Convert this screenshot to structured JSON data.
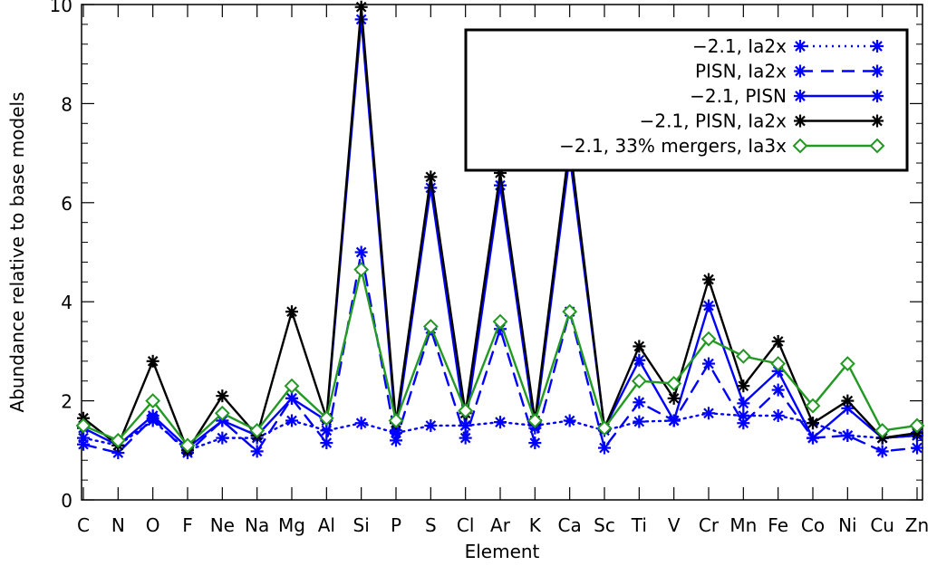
{
  "chart_data": {
    "type": "line",
    "xlabel": "Element",
    "ylabel": "Abundance relative to base models",
    "ylim": [
      0,
      10
    ],
    "yticks": [
      0,
      2,
      4,
      6,
      8,
      10
    ],
    "categories": [
      "C",
      "N",
      "O",
      "F",
      "Ne",
      "Na",
      "Mg",
      "Al",
      "Si",
      "P",
      "S",
      "Cl",
      "Ar",
      "K",
      "Ca",
      "Sc",
      "Ti",
      "V",
      "Cr",
      "Mn",
      "Fe",
      "Co",
      "Ni",
      "Cu",
      "Zn"
    ],
    "legend_position": "top-right",
    "series": [
      {
        "name": "−2.1, Ia2x",
        "color": "#0000ff",
        "line": "dotted",
        "marker": "asterisk",
        "values": [
          1.25,
          1.1,
          1.6,
          1.0,
          1.25,
          1.25,
          1.6,
          1.4,
          1.55,
          1.35,
          1.5,
          1.5,
          1.57,
          1.5,
          1.6,
          1.4,
          1.58,
          1.6,
          1.75,
          1.7,
          1.7,
          1.55,
          1.3,
          1.25,
          1.3
        ]
      },
      {
        "name": "PISN, Ia2x",
        "color": "#0000ff",
        "line": "dashed",
        "marker": "asterisk",
        "values": [
          1.12,
          0.95,
          1.65,
          0.95,
          1.6,
          0.98,
          2.05,
          1.15,
          5.0,
          1.2,
          3.45,
          1.25,
          3.45,
          1.15,
          3.8,
          1.05,
          1.97,
          1.6,
          2.75,
          1.55,
          2.22,
          1.25,
          1.3,
          0.98,
          1.05
        ]
      },
      {
        "name": "−2.1, PISN",
        "color": "#0000ff",
        "line": "solid",
        "marker": "asterisk",
        "values": [
          1.45,
          1.1,
          1.7,
          1.05,
          1.6,
          1.3,
          2.05,
          1.6,
          9.7,
          1.4,
          6.3,
          1.5,
          6.35,
          1.45,
          6.95,
          1.45,
          2.82,
          1.6,
          3.92,
          1.95,
          2.6,
          1.25,
          1.85,
          1.25,
          1.3
        ]
      },
      {
        "name": "−2.1, PISN, Ia2x",
        "color": "#000000",
        "line": "solid",
        "marker": "asterisk",
        "values": [
          1.65,
          1.1,
          2.8,
          1.0,
          2.1,
          1.3,
          3.8,
          1.65,
          9.95,
          1.55,
          6.52,
          1.75,
          6.6,
          1.6,
          7.2,
          1.45,
          3.1,
          2.05,
          4.45,
          2.3,
          3.2,
          1.55,
          2.0,
          1.25,
          1.35
        ]
      },
      {
        "name": "−2.1, 33% mergers, Ia3x",
        "color": "#229922",
        "line": "solid",
        "marker": "diamond",
        "values": [
          1.5,
          1.2,
          2.0,
          1.1,
          1.75,
          1.4,
          2.3,
          1.65,
          4.65,
          1.6,
          3.5,
          1.8,
          3.6,
          1.6,
          3.8,
          1.45,
          2.4,
          2.35,
          3.25,
          2.9,
          2.75,
          1.9,
          2.75,
          1.4,
          1.5
        ]
      }
    ]
  }
}
